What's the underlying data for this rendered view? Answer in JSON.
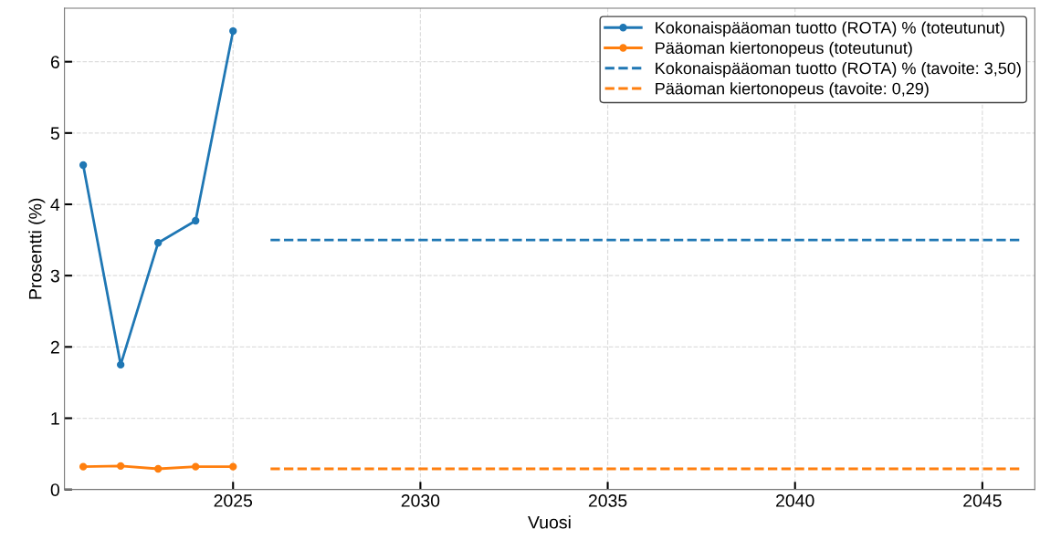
{
  "chart_data": {
    "type": "line",
    "xlabel": "Vuosi",
    "ylabel": "Prosentti (%)",
    "xlim": [
      2020.5,
      2046.4
    ],
    "xticks": [
      2025,
      2030,
      2035,
      2040,
      2045
    ],
    "ylim": [
      0,
      6.75
    ],
    "yticks": [
      0,
      1,
      2,
      3,
      4,
      5,
      6
    ],
    "grid": true,
    "legend": "top right",
    "series": [
      {
        "name": "Kokonaispääoman tuotto (ROTA) % (toteutunut)",
        "color": "#1f77b4",
        "x": [
          2021,
          2022,
          2023,
          2024,
          2025
        ],
        "values": [
          4.55,
          1.75,
          3.46,
          3.77,
          6.43
        ],
        "marker": "circle",
        "line_style": "solid"
      },
      {
        "name": "Pääoman kiertonopeus (toteutunut)",
        "color": "#ff7f0e",
        "x": [
          2021,
          2022,
          2023,
          2024,
          2025
        ],
        "values": [
          0.32,
          0.33,
          0.29,
          0.32,
          0.32
        ],
        "marker": "circle",
        "line_style": "solid"
      },
      {
        "name": "Kokonaispääoman tuotto (ROTA) % (tavoite: 3,50)",
        "color": "#1f77b4",
        "x": [
          2026,
          2046
        ],
        "values": [
          3.5,
          3.5
        ],
        "marker": "none",
        "line_style": "dashed"
      },
      {
        "name": "Pääoman kiertonopeus (tavoite: 0,29)",
        "color": "#ff7f0e",
        "x": [
          2026,
          2046
        ],
        "values": [
          0.29,
          0.29
        ],
        "marker": "none",
        "line_style": "dashed"
      }
    ]
  }
}
